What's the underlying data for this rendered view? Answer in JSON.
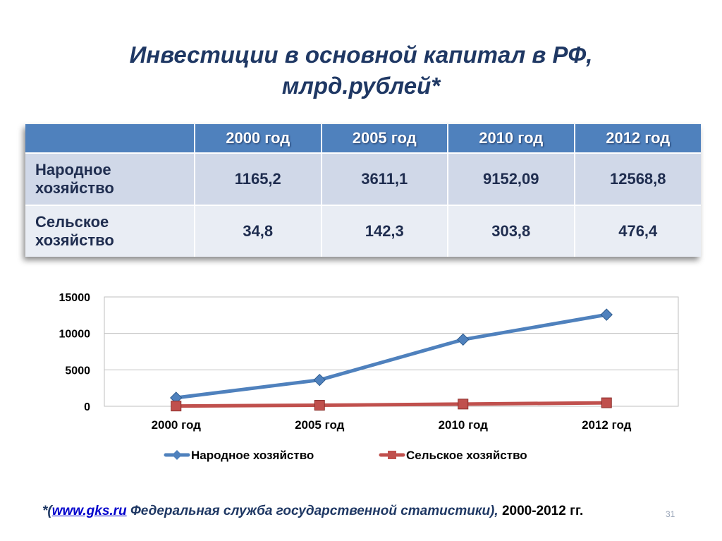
{
  "title": {
    "line1": "Инвестиции в основной капитал в РФ,",
    "line2": "млрд.рублей*"
  },
  "table": {
    "headers": [
      "",
      "2000 год",
      "2005 год",
      "2010 год",
      "2012 год"
    ],
    "rows": [
      {
        "label_line1": "Народное",
        "label_line2": "хозяйство",
        "values": [
          "1165,2",
          "3611,1",
          "9152,09",
          "12568,8"
        ]
      },
      {
        "label_line1": "Сельское",
        "label_line2": "хозяйство",
        "values": [
          "34,8",
          "142,3",
          "303,8",
          "476,4"
        ]
      }
    ]
  },
  "chart_data": {
    "type": "line",
    "categories": [
      "2000 год",
      "2005 год",
      "2010 год",
      "2012 год"
    ],
    "series": [
      {
        "name": "Народное хозяйство",
        "values": [
          1165.2,
          3611.1,
          9152.09,
          12568.8
        ],
        "color": "#4f81bd",
        "marker": "diamond"
      },
      {
        "name": "Сельское хозяйство",
        "values": [
          34.8,
          142.3,
          303.8,
          476.4
        ],
        "color": "#c0504d",
        "marker": "square"
      }
    ],
    "ylim": [
      0,
      15000
    ],
    "yticks": [
      "15000",
      "10000",
      "5000",
      "0"
    ],
    "ytick_values": [
      15000,
      10000,
      5000,
      0
    ],
    "grid": true,
    "legend": "bottom"
  },
  "footnote": {
    "prefix": "*(",
    "link": "www.gks.ru",
    "text": " Федеральная служба государственной статистики),",
    "years": " 2000-2012 гг."
  },
  "page_number": "31"
}
